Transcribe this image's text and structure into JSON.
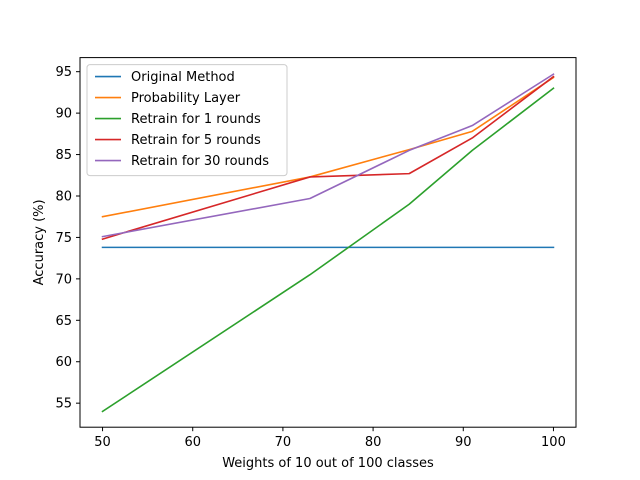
{
  "chart_data": {
    "type": "line",
    "xlabel": "Weights of 10 out of 100 classes",
    "ylabel": "Accuracy (%)",
    "xlim": [
      47.5,
      102.5
    ],
    "ylim": [
      52.1,
      96.7
    ],
    "xticks": [
      50,
      60,
      70,
      80,
      90,
      100
    ],
    "yticks": [
      55,
      60,
      65,
      70,
      75,
      80,
      85,
      90,
      95
    ],
    "grid": false,
    "legend_position": "top-left",
    "series": [
      {
        "name": "Original Method",
        "color": "#1f77b4",
        "x": [
          50,
          100
        ],
        "y": [
          73.8,
          73.8
        ]
      },
      {
        "name": "Probability Layer",
        "color": "#ff7f0e",
        "x": [
          50,
          73,
          84,
          91,
          100
        ],
        "y": [
          77.5,
          82.3,
          85.6,
          87.8,
          94.3
        ]
      },
      {
        "name": "Retrain for 1 rounds",
        "color": "#2ca02c",
        "x": [
          50,
          73,
          84,
          91,
          100
        ],
        "y": [
          54.0,
          70.5,
          79.0,
          85.5,
          93.0
        ]
      },
      {
        "name": "Retrain for 5 rounds",
        "color": "#d62728",
        "x": [
          50,
          73,
          84,
          91,
          100
        ],
        "y": [
          74.8,
          82.3,
          82.7,
          87.0,
          94.4
        ]
      },
      {
        "name": "Retrain for 30 rounds",
        "color": "#9467bd",
        "x": [
          50,
          73,
          84,
          91,
          100
        ],
        "y": [
          75.1,
          79.7,
          85.5,
          88.5,
          94.7
        ]
      }
    ]
  }
}
